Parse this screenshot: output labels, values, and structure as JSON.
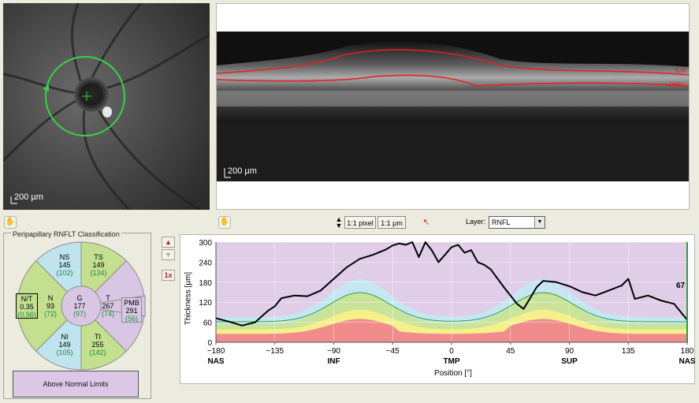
{
  "fundus": {
    "scale_label": "200 µm"
  },
  "bscan": {
    "scale_label": "200 µm",
    "layer_labels": [
      "ILM",
      "RNFL"
    ]
  },
  "toolbar": {
    "pixel_button": "1:1 pixel",
    "um_button": "1:1 µm",
    "layer_label": "Layer:",
    "layer_value": "RNFL"
  },
  "classification": {
    "title": "Peripapillary RNFLT Classification",
    "sectors": {
      "NS": {
        "label": "NS",
        "value": "145",
        "normal": "(102)",
        "color": "#bfe3ef"
      },
      "TS": {
        "label": "TS",
        "value": "149",
        "normal": "(134)",
        "color": "#c3df8f"
      },
      "N": {
        "label": "N",
        "value": "93",
        "normal": "(72)",
        "color": "#c3df8f"
      },
      "G": {
        "label": "G",
        "value": "177",
        "normal": "(97)",
        "color": "#d9c6e5"
      },
      "T": {
        "label": "T",
        "value": "267",
        "normal": "(74)",
        "color": "#d9c6e5"
      },
      "PMB": {
        "label": "PMB",
        "value": "291",
        "normal": "(56)",
        "color": "#d9c6e5"
      },
      "NI": {
        "label": "NI",
        "value": "149",
        "normal": "(105)",
        "color": "#bfe3ef"
      },
      "TI": {
        "label": "TI",
        "value": "255",
        "normal": "(142)",
        "color": "#c3df8f"
      }
    },
    "nt": {
      "label": "N/T",
      "value": "0.35",
      "normal": "(0.96)"
    },
    "result": "Above Normal Limits",
    "zoom_label": "1x"
  },
  "chart_data": {
    "type": "line",
    "xlabel": "Position [°]",
    "ylabel": "Thickness [µm]",
    "xlim": [
      -180,
      180
    ],
    "ylim": [
      0,
      300
    ],
    "x_ticks": [
      "-180",
      "-135",
      "-90",
      "-45",
      "0",
      "45",
      "90",
      "135",
      "180"
    ],
    "y_ticks": [
      "0",
      "60",
      "120",
      "180",
      "240",
      "300"
    ],
    "x_sublabels": [
      "NAS",
      "INF",
      "TMP",
      "SUP",
      "NAS"
    ],
    "x_sublabel_positions": [
      -180,
      -90,
      0,
      90,
      180
    ],
    "end_value": "67",
    "x": [
      -180,
      -170,
      -160,
      -150,
      -140,
      -135,
      -130,
      -120,
      -110,
      -100,
      -90,
      -80,
      -70,
      -60,
      -50,
      -45,
      -40,
      -35,
      -30,
      -25,
      -20,
      -15,
      -10,
      -5,
      0,
      5,
      10,
      15,
      20,
      25,
      30,
      40,
      50,
      55,
      60,
      65,
      70,
      80,
      90,
      100,
      110,
      120,
      130,
      135,
      140,
      150,
      160,
      170,
      180
    ],
    "series": [
      {
        "values": [
          72,
          62,
          50,
          60,
          95,
          108,
          132,
          140,
          138,
          155,
          190,
          225,
          250,
          262,
          278,
          290,
          296,
          292,
          300,
          255,
          300,
          275,
          240,
          262,
          285,
          292,
          268,
          276,
          240,
          232,
          218,
          165,
          115,
          100,
          132,
          165,
          184,
          180,
          168,
          150,
          140,
          155,
          170,
          190,
          130,
          140,
          125,
          115,
          67
        ]
      }
    ],
    "colors": {
      "above": "#e0cde8",
      "normal_high": "#c6e7f1",
      "normal": "#c9e49a",
      "borderline": "#f5f08a",
      "outside": "#f08c8c",
      "mean_line": "#2f9e3f",
      "measured": "#000000",
      "right_axis": "#2f9e3f"
    }
  }
}
